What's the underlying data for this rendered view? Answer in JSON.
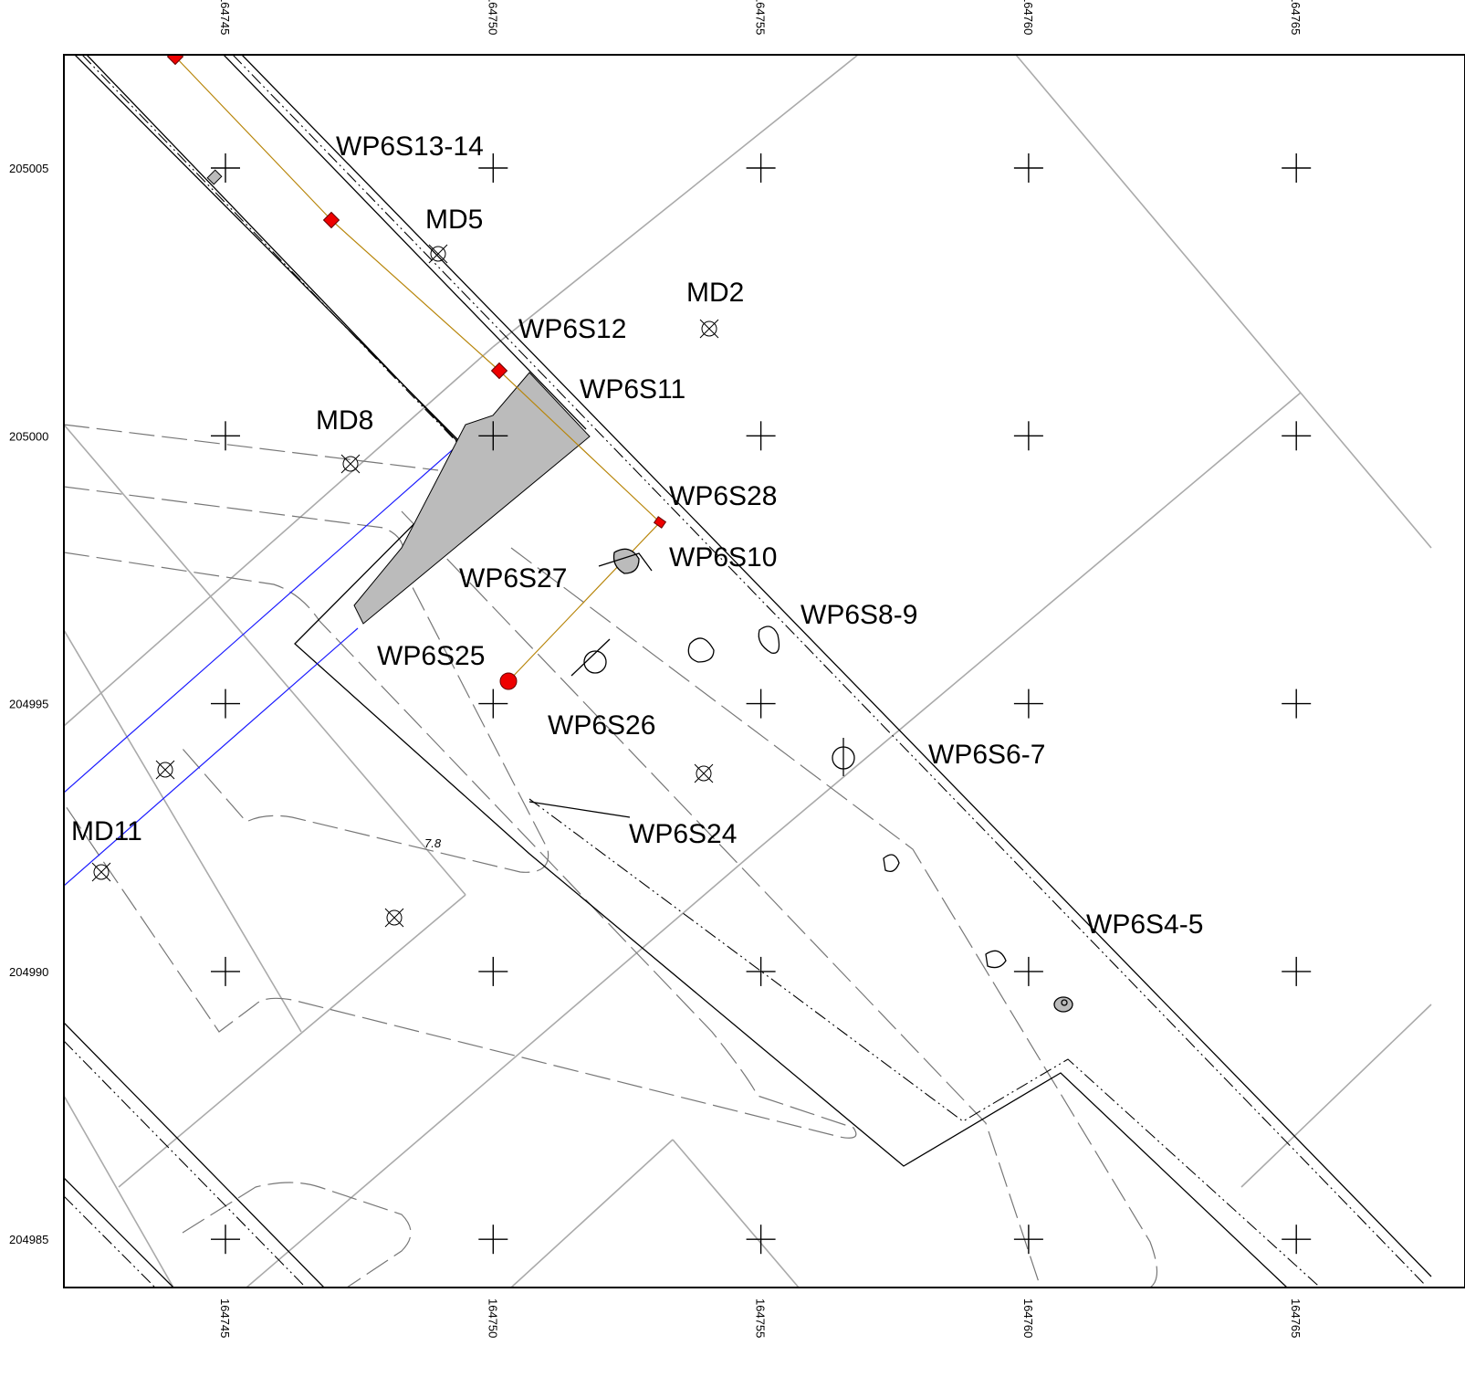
{
  "eastings": [
    "164745",
    "164750",
    "164755",
    "164760",
    "164765"
  ],
  "northings": [
    "205005",
    "205000",
    "204995",
    "204990",
    "204985"
  ],
  "contour_label": "7.8",
  "features": [
    "WP6S13-14",
    "MD5",
    "MD2",
    "WP6S12",
    "WP6S11",
    "MD8",
    "WP6S28",
    "WP6S10",
    "WP6S27",
    "WP6S8-9",
    "WP6S25",
    "WP6S26",
    "WP6S6-7",
    "MD11",
    "WP6S24",
    "WP6S4-5"
  ]
}
